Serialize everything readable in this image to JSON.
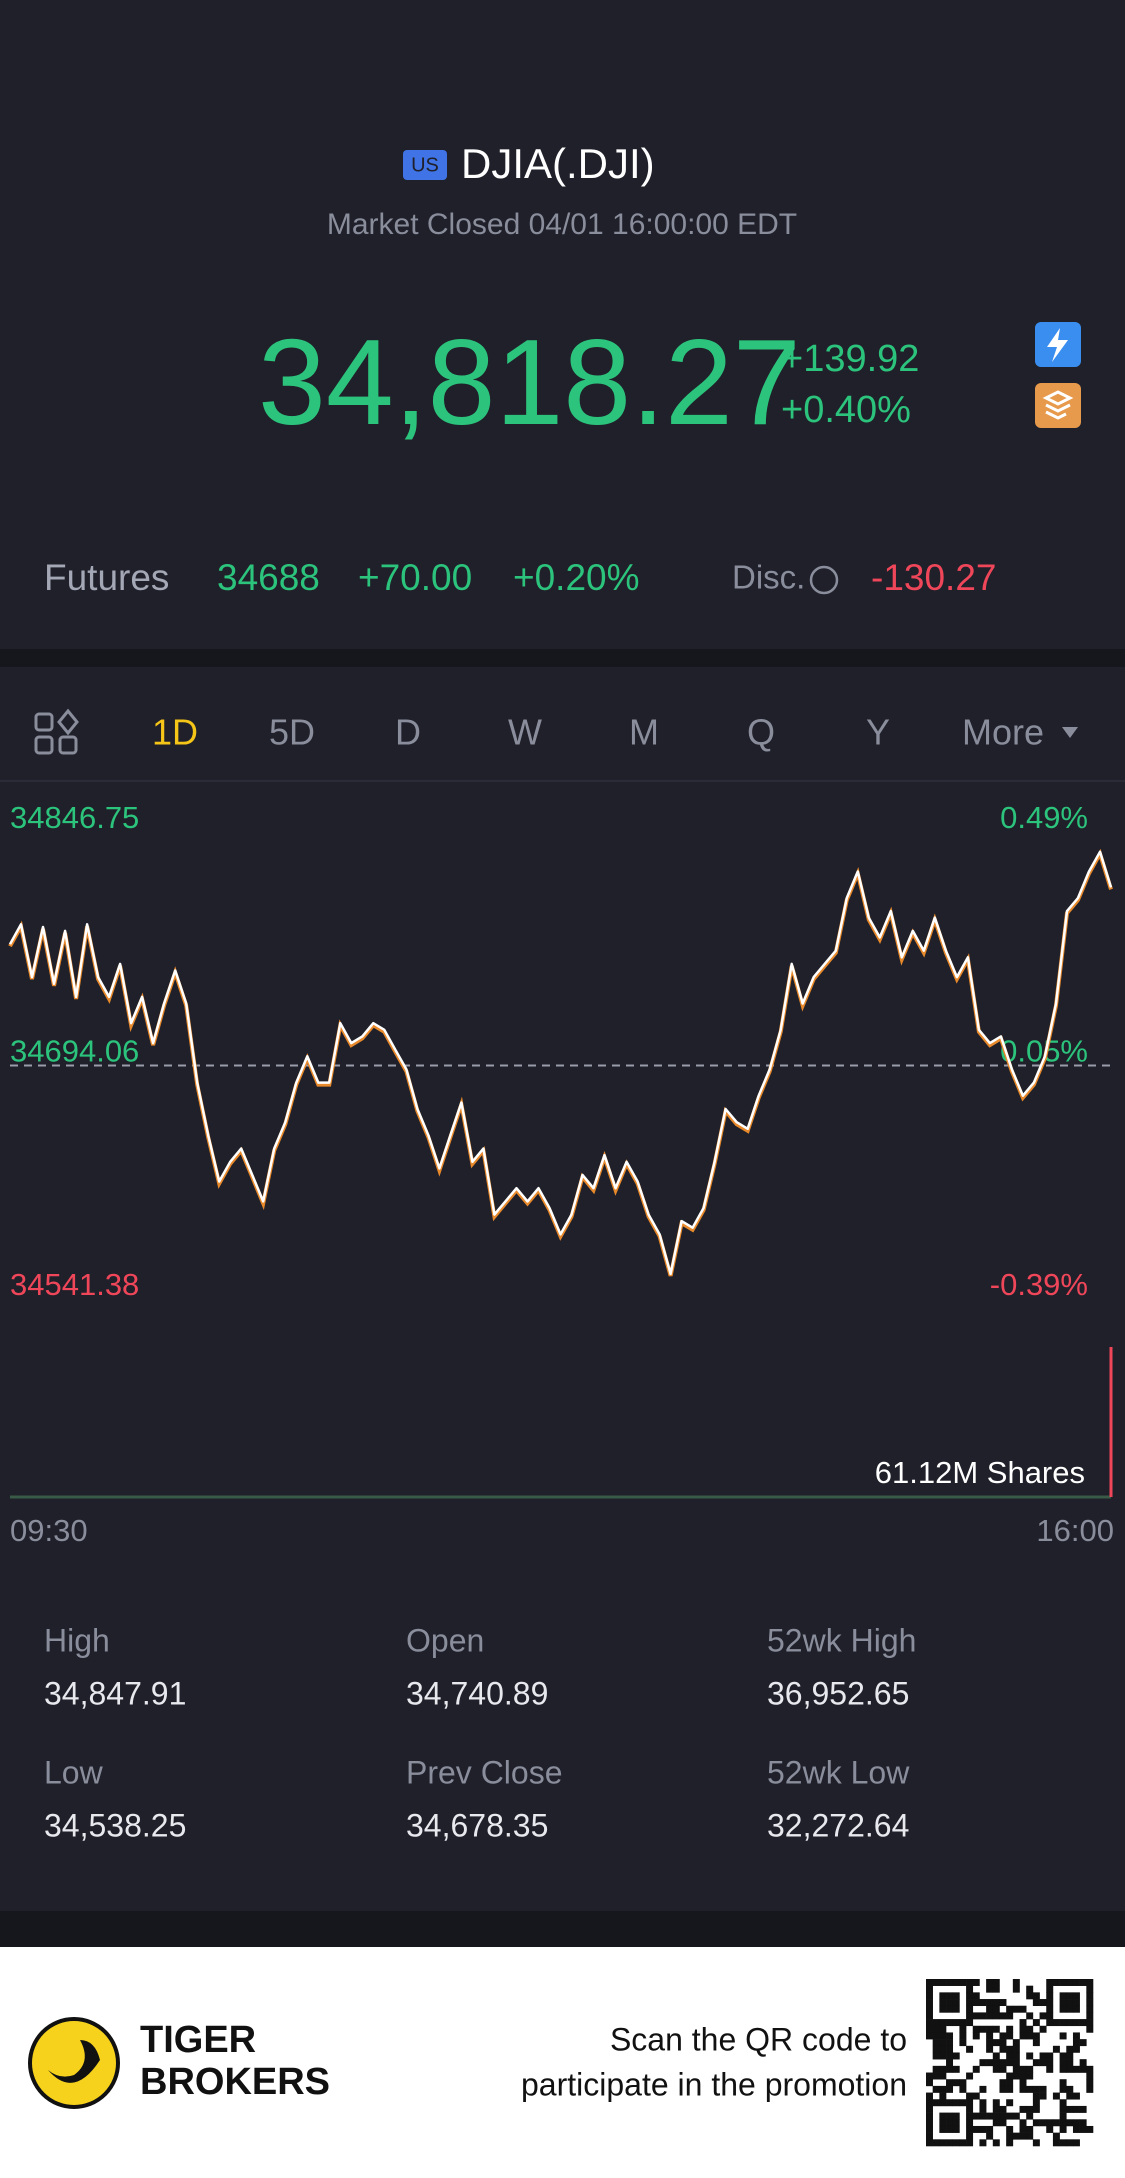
{
  "header": {
    "badge": "US",
    "title": "DJIA(.DJI)",
    "status": "Market Closed 04/01 16:00:00 EDT"
  },
  "quote": {
    "price": "34,818.27",
    "change": "+139.92",
    "change_pct": "+0.40%"
  },
  "futures": {
    "label": "Futures",
    "price": "34688",
    "change": "+70.00",
    "change_pct": "+0.20%",
    "disc_label": "Disc.",
    "disc_value": "-130.27"
  },
  "tabs": [
    "1D",
    "5D",
    "D",
    "W",
    "M",
    "Q",
    "Y",
    "More"
  ],
  "active_tab": 0,
  "chart_data": {
    "type": "line",
    "color": "#ffffff",
    "values": [
      34773.4,
      34786.4,
      34751.9,
      34784.6,
      34747.5,
      34782.1,
      34738.9,
      34786.4,
      34751.9,
      34738.9,
      34760.5,
      34721.7,
      34738.9,
      34708.7,
      34734.6,
      34756.2,
      34734.6,
      34682.9,
      34648.4,
      34618.2,
      34631.1,
      34639.7,
      34622.5,
      34605.2,
      34639.7,
      34657.0,
      34682.9,
      34700.1,
      34682.9,
      34682.9,
      34721.7,
      34708.7,
      34713.1,
      34721.7,
      34717.4,
      34704.4,
      34691.5,
      34665.6,
      34648.4,
      34626.8,
      34648.4,
      34669.9,
      34631.1,
      34639.7,
      34596.6,
      34605.2,
      34613.8,
      34605.2,
      34613.8,
      34600.9,
      34583.7,
      34596.6,
      34622.5,
      34613.8,
      34635.4,
      34613.8,
      34631.1,
      34618.2,
      34596.6,
      34583.7,
      34557.8,
      34592.3,
      34588.0,
      34600.9,
      34631.1,
      34665.6,
      34657.0,
      34652.7,
      34674.3,
      34691.5,
      34717.4,
      34760.5,
      34734.6,
      34751.9,
      34760.5,
      34769.1,
      34803.6,
      34820.9,
      34790.7,
      34777.8,
      34795.0,
      34764.8,
      34782.1,
      34769.1,
      34790.7,
      34769.1,
      34751.9,
      34764.8,
      34717.4,
      34708.7,
      34713.1,
      34691.5,
      34674.3,
      34682.9,
      34700.1,
      34734.6,
      34795.0,
      34803.6,
      34820.9,
      34833.8,
      34810.5
    ],
    "ylim": [
      34541.38,
      34846.75
    ],
    "yticks": [
      34541.38,
      34694.06,
      34846.75
    ],
    "y2lim": [
      -0.39,
      0.49
    ],
    "y2ticks": [
      {
        "value": -0.39,
        "label": "-0.39%"
      },
      {
        "value": 0.05,
        "label": "0.05%"
      },
      {
        "value": 0.49,
        "label": "0.49%"
      }
    ],
    "volume_label": "61.12M Shares",
    "xlabels": [
      "09:30",
      "16:00"
    ]
  },
  "stats": [
    {
      "label": "High",
      "value": "34,847.91"
    },
    {
      "label": "Open",
      "value": "34,740.89"
    },
    {
      "label": "52wk High",
      "value": "36,952.65"
    },
    {
      "label": "Low",
      "value": "34,538.25"
    },
    {
      "label": "Prev Close",
      "value": "34,678.35"
    },
    {
      "label": "52wk Low",
      "value": "32,272.64"
    }
  ],
  "footer": {
    "brand": [
      "TIGER",
      "BROKERS"
    ],
    "promo": [
      "Scan the QR code to",
      "participate in the promotion"
    ]
  }
}
